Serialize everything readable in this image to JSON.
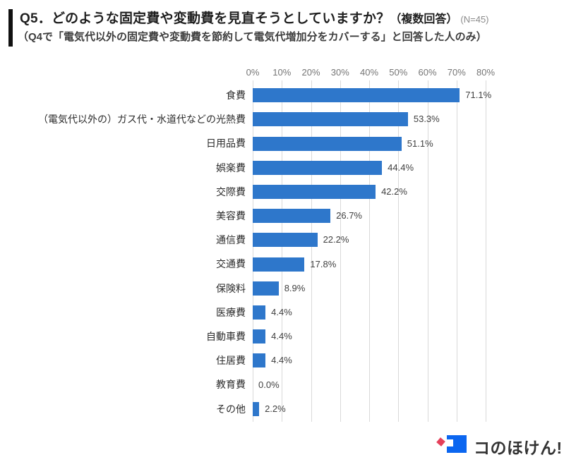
{
  "header": {
    "title_main": "Q5．どのような固定費や変動費を見直そうとしていますか？",
    "title_note": "（複数回答）",
    "title_n": "(N=45)",
    "subtitle": "（Q4で「電気代以外の固定費や変動費を節約して電気代増加分をカバーする」と回答した人のみ）"
  },
  "chart_data": {
    "type": "bar",
    "orientation": "horizontal",
    "title": "Q5．どのような固定費や変動費を見直そうとしていますか？（複数回答）(N=45)",
    "categories": [
      "食費",
      "（電気代以外の）ガス代・水道代などの光熱費",
      "日用品費",
      "娯楽費",
      "交際費",
      "美容費",
      "通信費",
      "交通費",
      "保険料",
      "医療費",
      "自動車費",
      "住居費",
      "教育費",
      "その他"
    ],
    "values": [
      71.1,
      53.3,
      51.1,
      44.4,
      42.2,
      26.7,
      22.2,
      17.8,
      8.9,
      4.4,
      4.4,
      4.4,
      0.0,
      2.2
    ],
    "value_labels": [
      "71.1%",
      "53.3%",
      "51.1%",
      "44.4%",
      "42.2%",
      "26.7%",
      "22.2%",
      "17.8%",
      "8.9%",
      "4.4%",
      "4.4%",
      "4.4%",
      "0.0%",
      "2.2%"
    ],
    "xlabel": "",
    "ylabel": "",
    "xlim": [
      0,
      80
    ],
    "x_tick_labels": [
      "0%",
      "10%",
      "20%",
      "30%",
      "40%",
      "50%",
      "60%",
      "70%",
      "80%"
    ],
    "x_tick_values": [
      0,
      10,
      20,
      30,
      40,
      50,
      60,
      70,
      80
    ],
    "grid": true,
    "legend": false,
    "bar_color": "#2E77CB",
    "grid_color": "#d9d9d9",
    "tick_label_color": "#757575",
    "value_label_color": "#404040"
  },
  "logo": {
    "text": "コのほけん!",
    "blue": "#0B66F0",
    "pink": "#E5405A"
  }
}
